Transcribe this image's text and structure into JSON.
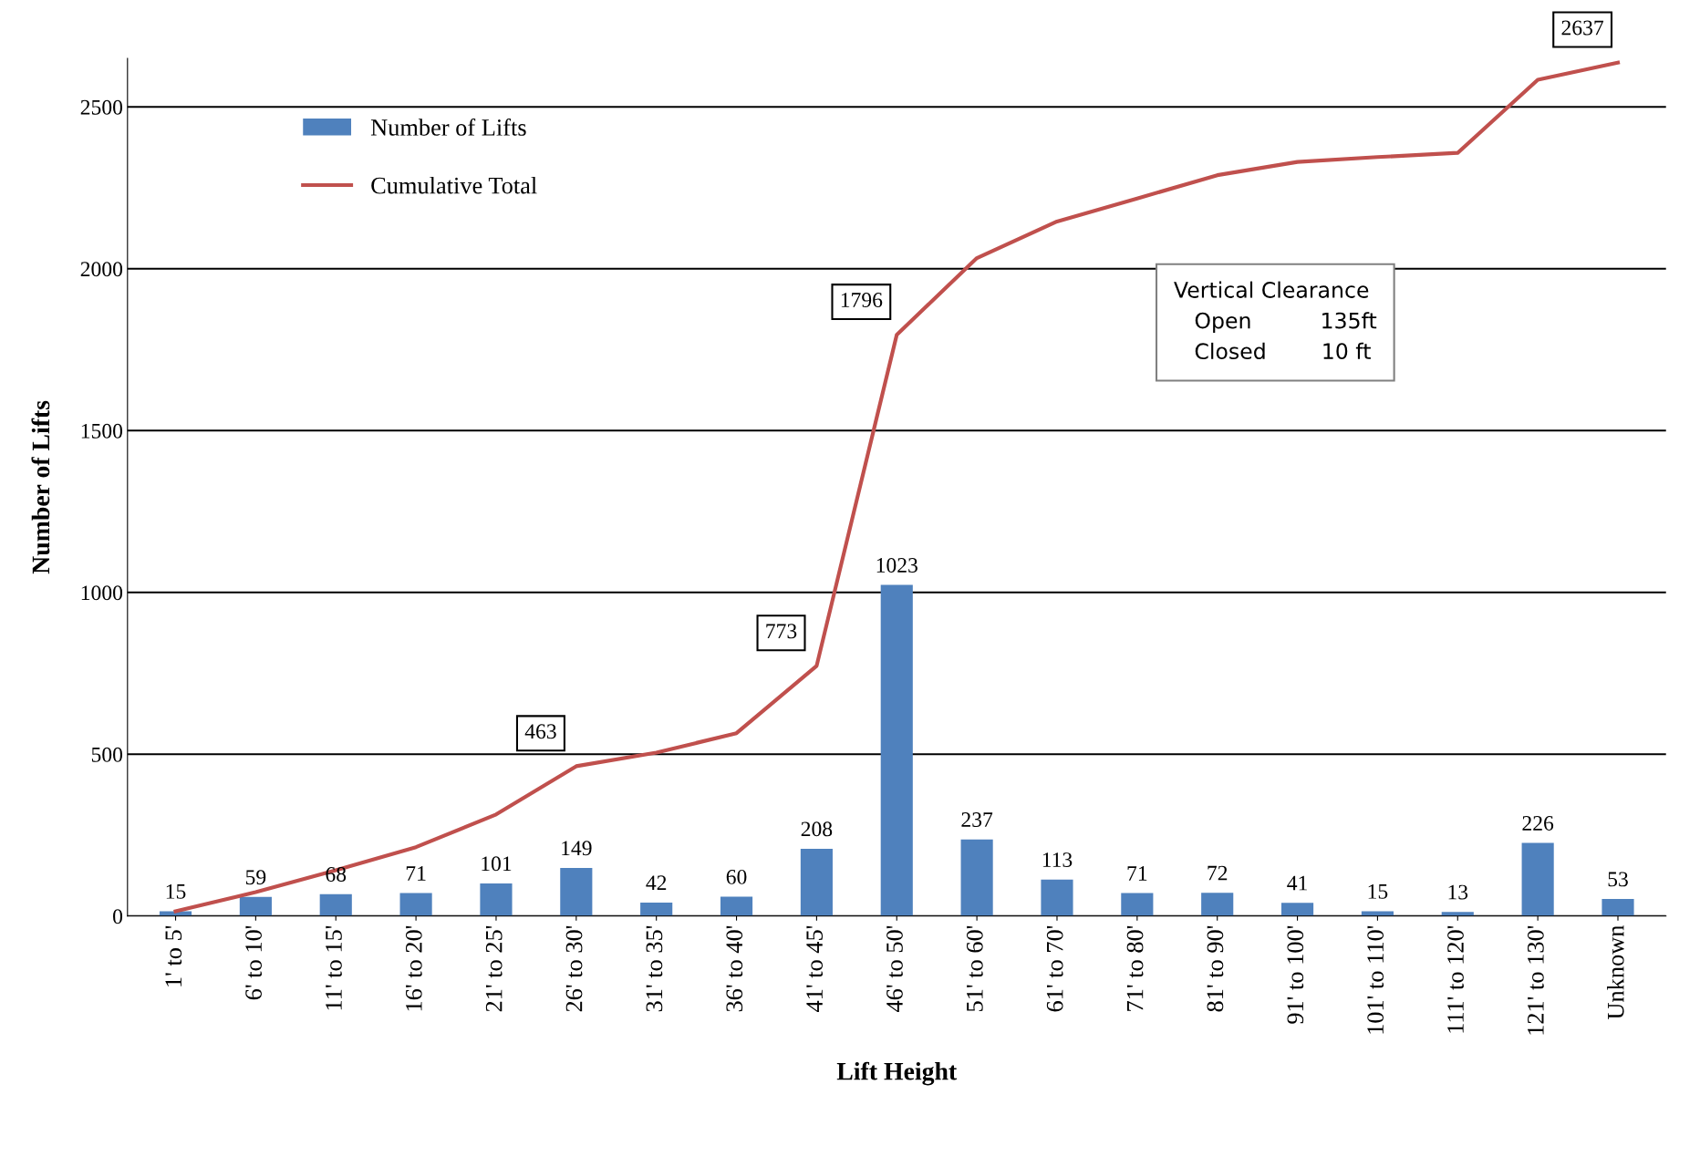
{
  "chart_data": {
    "type": "bar",
    "xlabel": "Lift Height",
    "ylabel": "Number of Lifts",
    "categories": [
      "1' to 5'",
      "6' to 10'",
      "11' to 15'",
      "16' to 20'",
      "21' to 25'",
      "26' to 30'",
      "31' to 35'",
      "36' to 40'",
      "41' to 45'",
      "46' to 50'",
      "51' to 60'",
      "61' to 70'",
      "71' to 80'",
      "81' to 90'",
      "91' to 100'",
      "101' to 110'",
      "111' to 120'",
      "121' to 130'",
      "Unknown"
    ],
    "series": [
      {
        "name": "Number of Lifts",
        "color": "#4f81bd",
        "data_labels": true,
        "values": [
          15,
          59,
          68,
          71,
          101,
          149,
          42,
          60,
          208,
          1023,
          237,
          113,
          71,
          72,
          41,
          15,
          13,
          226,
          53
        ]
      },
      {
        "name": "Cumulative Total",
        "type": "line",
        "color": "#c0504d",
        "values": [
          15,
          74,
          142,
          213,
          314,
          463,
          505,
          565,
          773,
          1796,
          2033,
          2146,
          2217,
          2289,
          2330,
          2345,
          2358,
          2584,
          2637
        ],
        "value_labels": [
          null,
          null,
          null,
          null,
          null,
          "463",
          null,
          null,
          "773",
          "1796",
          null,
          null,
          null,
          null,
          null,
          null,
          null,
          null,
          "2637"
        ]
      }
    ],
    "ylim": [
      0,
      2650
    ],
    "yticks": [
      0,
      500,
      1000,
      1500,
      2000,
      2500
    ],
    "grid": "y",
    "legend": "top left",
    "annotations": [
      "Vertical Clearance\n   Open          135ft\n   Closed        10 ft"
    ]
  }
}
